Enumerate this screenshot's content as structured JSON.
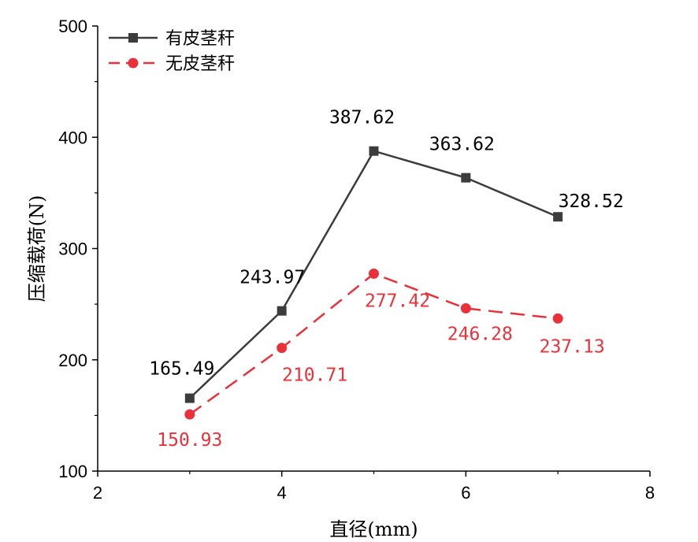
{
  "chart_data": {
    "type": "line",
    "xlabel": "直径(mm)",
    "ylabel": "压缩载荷(N)",
    "xlim": [
      2,
      8
    ],
    "ylim": [
      100,
      500
    ],
    "xticks": [
      2,
      4,
      6,
      8
    ],
    "yticks": [
      100,
      200,
      300,
      400,
      500
    ],
    "grid": false,
    "legend_position": "top-left",
    "x": [
      3,
      4,
      5,
      6,
      7
    ],
    "series": [
      {
        "name": "有皮茎秆",
        "values": [
          165.49,
          243.97,
          387.62,
          363.62,
          328.52
        ],
        "labels": [
          "165.49",
          "243.97",
          "387.62",
          "363.62",
          "328.52"
        ],
        "color": "#3c3c3c",
        "marker": "square",
        "line_style": "solid"
      },
      {
        "name": "无皮茎秆",
        "values": [
          150.93,
          210.71,
          277.42,
          246.28,
          237.13
        ],
        "labels": [
          "150.93",
          "210.71",
          "277.42",
          "246.28",
          "237.13"
        ],
        "color": "#e8313a",
        "marker": "circle",
        "line_style": "dashed"
      }
    ]
  }
}
